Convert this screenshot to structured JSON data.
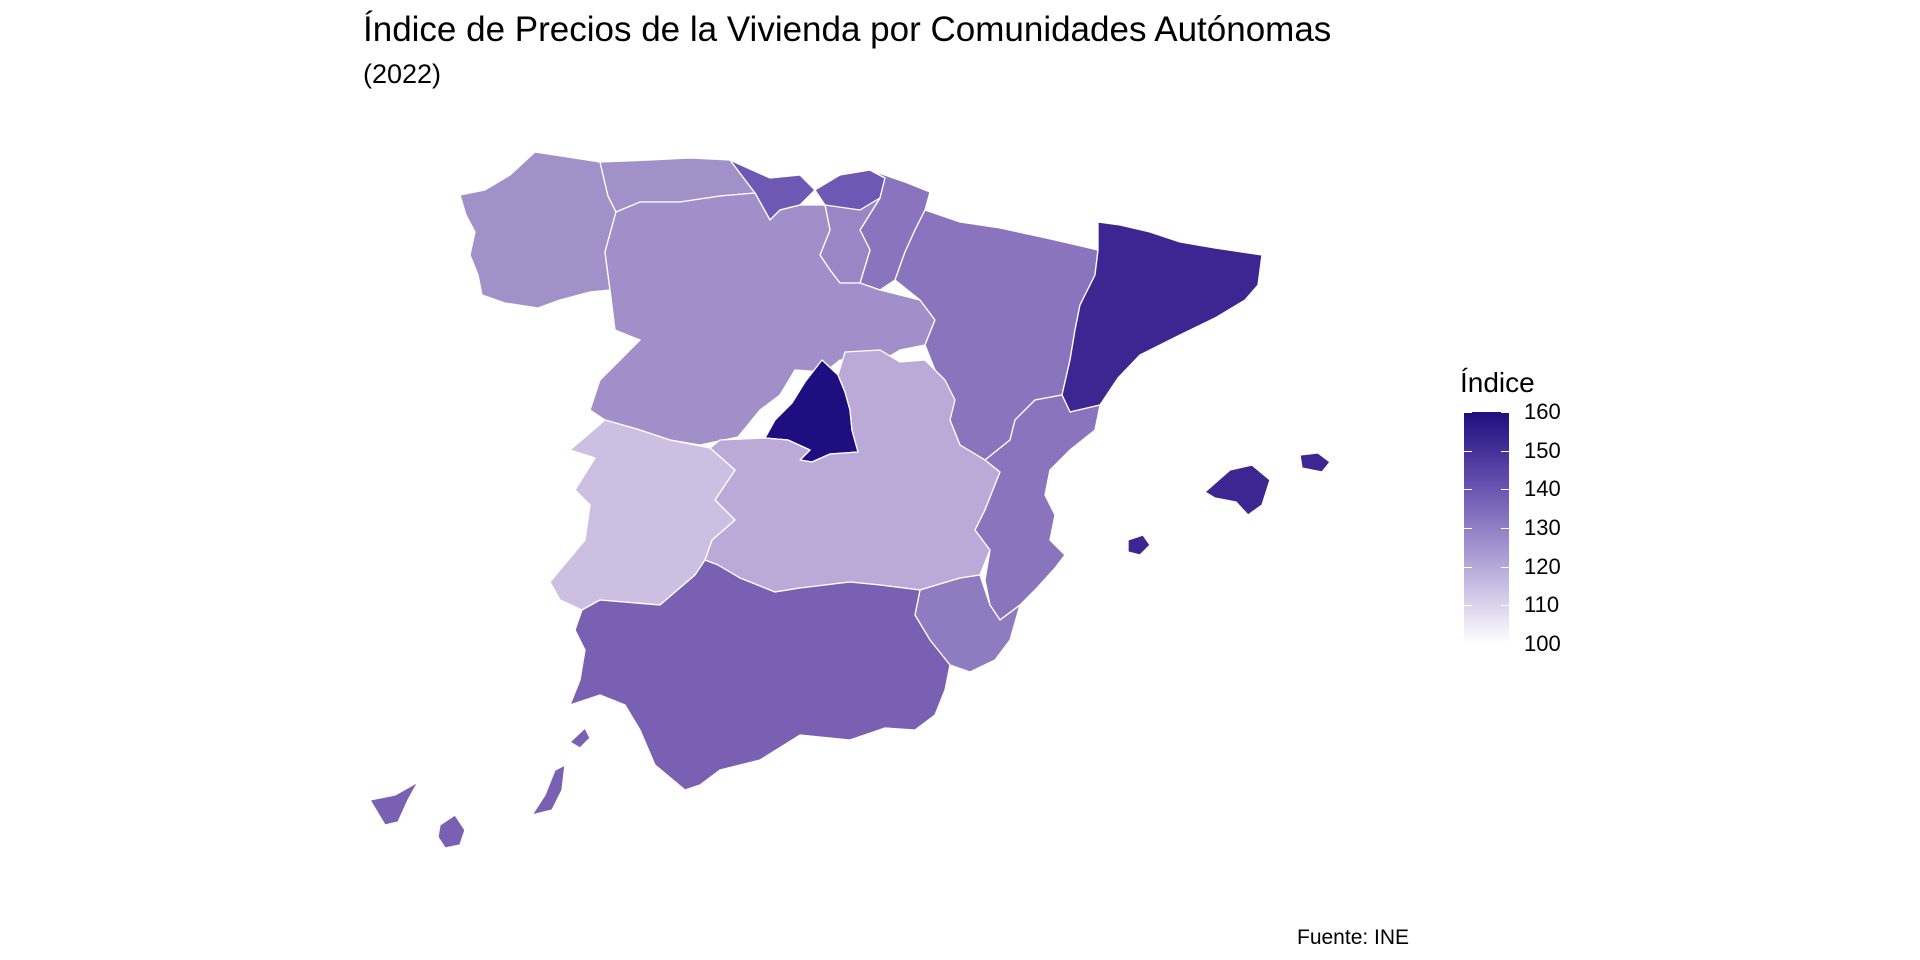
{
  "title": "Índice de Precios de la Vivienda por Comunidades Autónomas",
  "subtitle": "(2022)",
  "caption": "Fuente: INE",
  "legend": {
    "title": "Índice",
    "ticks": [
      "160",
      "150",
      "140",
      "130",
      "120",
      "110",
      "100"
    ],
    "range": [
      100,
      160
    ],
    "low_color": "#ffffff",
    "high_color": "#1e0e7f"
  },
  "region_colors": {
    "galicia": "#a290c8",
    "asturias": "#a290c8",
    "cantabria": "#6d58b3",
    "pais_vasco": "#6d58b3",
    "navarra": "#8a74bd",
    "la_rioja": "#9a86c4",
    "aragon": "#8a74bd",
    "cataluna": "#3d2691",
    "castilla_y_leon": "#a28ec8",
    "madrid": "#1e0e7f",
    "castilla_la_mancha": "#bbaad8",
    "extremadura": "#ccbfe1",
    "comunidad_valenciana": "#8a74bd",
    "murcia": "#8f7bbf",
    "andalucia": "#7a60b2",
    "baleares": "#3d2691",
    "canarias": "#7a60b2"
  }
}
